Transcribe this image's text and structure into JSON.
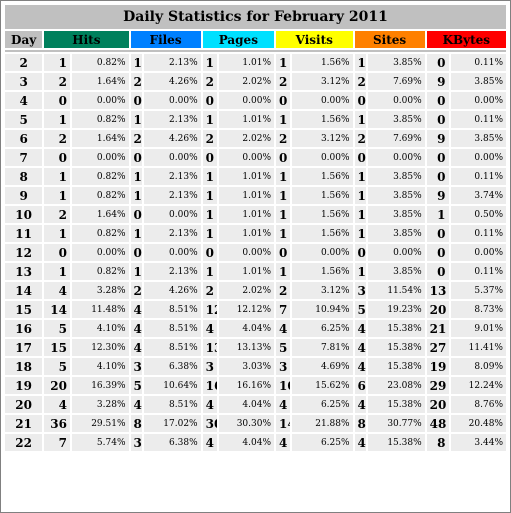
{
  "title": "Daily Statistics for February 2011",
  "headers": {
    "day": "Day",
    "hits": "Hits",
    "files": "Files",
    "pages": "Pages",
    "visits": "Visits",
    "sites": "Sites",
    "kbytes": "KBytes"
  },
  "colors": {
    "hits": "#00805c",
    "files": "#0080ff",
    "pages": "#00e0ff",
    "visits": "#ffff00",
    "sites": "#ff8000",
    "kbytes": "#ff0000",
    "day": "#c0c0c0",
    "row": "#ececec"
  },
  "rows": [
    {
      "day": "2",
      "hits": "1",
      "hits_pct": "0.82%",
      "files": "1",
      "files_pct": "2.13%",
      "pages": "1",
      "pages_pct": "1.01%",
      "visits": "1",
      "visits_pct": "1.56%",
      "sites": "1",
      "sites_pct": "3.85%",
      "kbytes": "0",
      "kbytes_pct": "0.11%"
    },
    {
      "day": "3",
      "hits": "2",
      "hits_pct": "1.64%",
      "files": "2",
      "files_pct": "4.26%",
      "pages": "2",
      "pages_pct": "2.02%",
      "visits": "2",
      "visits_pct": "3.12%",
      "sites": "2",
      "sites_pct": "7.69%",
      "kbytes": "9",
      "kbytes_pct": "3.85%"
    },
    {
      "day": "4",
      "hits": "0",
      "hits_pct": "0.00%",
      "files": "0",
      "files_pct": "0.00%",
      "pages": "0",
      "pages_pct": "0.00%",
      "visits": "0",
      "visits_pct": "0.00%",
      "sites": "0",
      "sites_pct": "0.00%",
      "kbytes": "0",
      "kbytes_pct": "0.00%"
    },
    {
      "day": "5",
      "hits": "1",
      "hits_pct": "0.82%",
      "files": "1",
      "files_pct": "2.13%",
      "pages": "1",
      "pages_pct": "1.01%",
      "visits": "1",
      "visits_pct": "1.56%",
      "sites": "1",
      "sites_pct": "3.85%",
      "kbytes": "0",
      "kbytes_pct": "0.11%"
    },
    {
      "day": "6",
      "hits": "2",
      "hits_pct": "1.64%",
      "files": "2",
      "files_pct": "4.26%",
      "pages": "2",
      "pages_pct": "2.02%",
      "visits": "2",
      "visits_pct": "3.12%",
      "sites": "2",
      "sites_pct": "7.69%",
      "kbytes": "9",
      "kbytes_pct": "3.85%"
    },
    {
      "day": "7",
      "hits": "0",
      "hits_pct": "0.00%",
      "files": "0",
      "files_pct": "0.00%",
      "pages": "0",
      "pages_pct": "0.00%",
      "visits": "0",
      "visits_pct": "0.00%",
      "sites": "0",
      "sites_pct": "0.00%",
      "kbytes": "0",
      "kbytes_pct": "0.00%"
    },
    {
      "day": "8",
      "hits": "1",
      "hits_pct": "0.82%",
      "files": "1",
      "files_pct": "2.13%",
      "pages": "1",
      "pages_pct": "1.01%",
      "visits": "1",
      "visits_pct": "1.56%",
      "sites": "1",
      "sites_pct": "3.85%",
      "kbytes": "0",
      "kbytes_pct": "0.11%"
    },
    {
      "day": "9",
      "hits": "1",
      "hits_pct": "0.82%",
      "files": "1",
      "files_pct": "2.13%",
      "pages": "1",
      "pages_pct": "1.01%",
      "visits": "1",
      "visits_pct": "1.56%",
      "sites": "1",
      "sites_pct": "3.85%",
      "kbytes": "9",
      "kbytes_pct": "3.74%"
    },
    {
      "day": "10",
      "hits": "2",
      "hits_pct": "1.64%",
      "files": "0",
      "files_pct": "0.00%",
      "pages": "1",
      "pages_pct": "1.01%",
      "visits": "1",
      "visits_pct": "1.56%",
      "sites": "1",
      "sites_pct": "3.85%",
      "kbytes": "1",
      "kbytes_pct": "0.50%"
    },
    {
      "day": "11",
      "hits": "1",
      "hits_pct": "0.82%",
      "files": "1",
      "files_pct": "2.13%",
      "pages": "1",
      "pages_pct": "1.01%",
      "visits": "1",
      "visits_pct": "1.56%",
      "sites": "1",
      "sites_pct": "3.85%",
      "kbytes": "0",
      "kbytes_pct": "0.11%"
    },
    {
      "day": "12",
      "hits": "0",
      "hits_pct": "0.00%",
      "files": "0",
      "files_pct": "0.00%",
      "pages": "0",
      "pages_pct": "0.00%",
      "visits": "0",
      "visits_pct": "0.00%",
      "sites": "0",
      "sites_pct": "0.00%",
      "kbytes": "0",
      "kbytes_pct": "0.00%"
    },
    {
      "day": "13",
      "hits": "1",
      "hits_pct": "0.82%",
      "files": "1",
      "files_pct": "2.13%",
      "pages": "1",
      "pages_pct": "1.01%",
      "visits": "1",
      "visits_pct": "1.56%",
      "sites": "1",
      "sites_pct": "3.85%",
      "kbytes": "0",
      "kbytes_pct": "0.11%"
    },
    {
      "day": "14",
      "hits": "4",
      "hits_pct": "3.28%",
      "files": "2",
      "files_pct": "4.26%",
      "pages": "2",
      "pages_pct": "2.02%",
      "visits": "2",
      "visits_pct": "3.12%",
      "sites": "3",
      "sites_pct": "11.54%",
      "kbytes": "13",
      "kbytes_pct": "5.37%"
    },
    {
      "day": "15",
      "hits": "14",
      "hits_pct": "11.48%",
      "files": "4",
      "files_pct": "8.51%",
      "pages": "12",
      "pages_pct": "12.12%",
      "visits": "7",
      "visits_pct": "10.94%",
      "sites": "5",
      "sites_pct": "19.23%",
      "kbytes": "20",
      "kbytes_pct": "8.73%"
    },
    {
      "day": "16",
      "hits": "5",
      "hits_pct": "4.10%",
      "files": "4",
      "files_pct": "8.51%",
      "pages": "4",
      "pages_pct": "4.04%",
      "visits": "4",
      "visits_pct": "6.25%",
      "sites": "4",
      "sites_pct": "15.38%",
      "kbytes": "21",
      "kbytes_pct": "9.01%"
    },
    {
      "day": "17",
      "hits": "15",
      "hits_pct": "12.30%",
      "files": "4",
      "files_pct": "8.51%",
      "pages": "13",
      "pages_pct": "13.13%",
      "visits": "5",
      "visits_pct": "7.81%",
      "sites": "4",
      "sites_pct": "15.38%",
      "kbytes": "27",
      "kbytes_pct": "11.41%"
    },
    {
      "day": "18",
      "hits": "5",
      "hits_pct": "4.10%",
      "files": "3",
      "files_pct": "6.38%",
      "pages": "3",
      "pages_pct": "3.03%",
      "visits": "3",
      "visits_pct": "4.69%",
      "sites": "4",
      "sites_pct": "15.38%",
      "kbytes": "19",
      "kbytes_pct": "8.09%"
    },
    {
      "day": "19",
      "hits": "20",
      "hits_pct": "16.39%",
      "files": "5",
      "files_pct": "10.64%",
      "pages": "16",
      "pages_pct": "16.16%",
      "visits": "10",
      "visits_pct": "15.62%",
      "sites": "6",
      "sites_pct": "23.08%",
      "kbytes": "29",
      "kbytes_pct": "12.24%"
    },
    {
      "day": "20",
      "hits": "4",
      "hits_pct": "3.28%",
      "files": "4",
      "files_pct": "8.51%",
      "pages": "4",
      "pages_pct": "4.04%",
      "visits": "4",
      "visits_pct": "6.25%",
      "sites": "4",
      "sites_pct": "15.38%",
      "kbytes": "20",
      "kbytes_pct": "8.76%"
    },
    {
      "day": "21",
      "hits": "36",
      "hits_pct": "29.51%",
      "files": "8",
      "files_pct": "17.02%",
      "pages": "30",
      "pages_pct": "30.30%",
      "visits": "14",
      "visits_pct": "21.88%",
      "sites": "8",
      "sites_pct": "30.77%",
      "kbytes": "48",
      "kbytes_pct": "20.48%"
    },
    {
      "day": "22",
      "hits": "7",
      "hits_pct": "5.74%",
      "files": "3",
      "files_pct": "6.38%",
      "pages": "4",
      "pages_pct": "4.04%",
      "visits": "4",
      "visits_pct": "6.25%",
      "sites": "4",
      "sites_pct": "15.38%",
      "kbytes": "8",
      "kbytes_pct": "3.44%"
    }
  ]
}
